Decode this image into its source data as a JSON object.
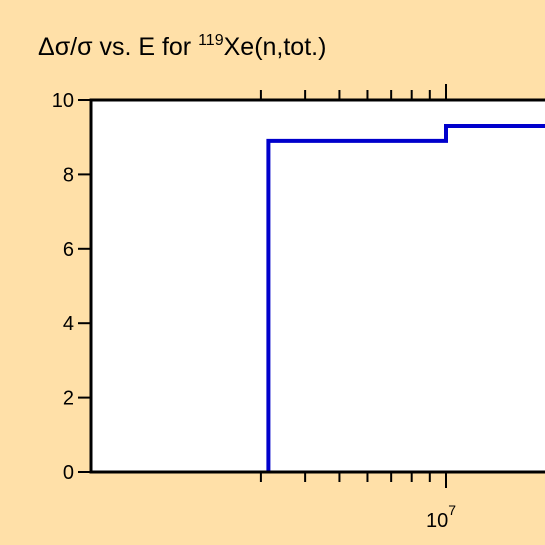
{
  "chart_data": {
    "type": "line",
    "title": {
      "prefix": "Δσ/σ vs. E for ",
      "superscript": "119",
      "suffix": "Xe(n,tot.)"
    },
    "xlabel": "",
    "ylabel": "",
    "x_scale": "log",
    "xlim": [
      2000000,
      20000000
    ],
    "ylim": [
      0,
      10
    ],
    "y_ticks": [
      "0",
      "2",
      "4",
      "6",
      "8",
      "10"
    ],
    "x_tick_labels": [
      {
        "value": 10000000,
        "base": "10",
        "exponent": "7"
      }
    ],
    "x_minor_ticks": [
      3000000,
      4000000,
      5000000,
      6000000,
      7000000,
      8000000,
      9000000,
      20000000
    ],
    "series": [
      {
        "style": "step",
        "color": "#0000cc",
        "points": [
          [
            3150000,
            0
          ],
          [
            3150000,
            8.9
          ],
          [
            10000000,
            8.9
          ],
          [
            10000000,
            9.3
          ],
          [
            20000000,
            9.3
          ]
        ]
      }
    ],
    "grid": false,
    "legend": "none"
  }
}
